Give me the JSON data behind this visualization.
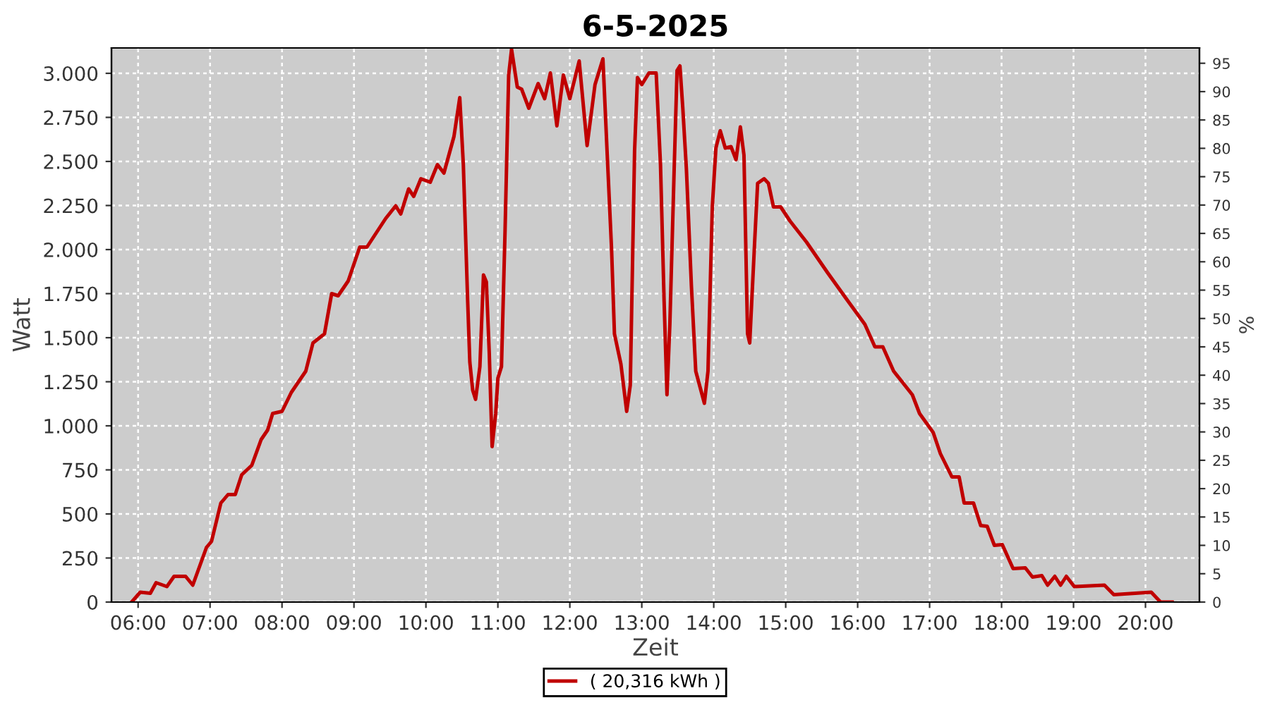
{
  "chart_data": {
    "type": "line",
    "title": "6-5-2025",
    "xlabel": "Zeit",
    "ylabel": "Watt",
    "y2label": "%",
    "xlim": [
      5.63,
      20.75
    ],
    "xticks": [
      {
        "value": 6,
        "label": "06:00"
      },
      {
        "value": 7,
        "label": "07:00"
      },
      {
        "value": 8,
        "label": "08:00"
      },
      {
        "value": 9,
        "label": "09:00"
      },
      {
        "value": 10,
        "label": "10:00"
      },
      {
        "value": 11,
        "label": "11:00"
      },
      {
        "value": 12,
        "label": "12:00"
      },
      {
        "value": 13,
        "label": "13:00"
      },
      {
        "value": 14,
        "label": "14:00"
      },
      {
        "value": 15,
        "label": "15:00"
      },
      {
        "value": 16,
        "label": "16:00"
      },
      {
        "value": 17,
        "label": "17:00"
      },
      {
        "value": 18,
        "label": "18:00"
      },
      {
        "value": 19,
        "label": "19:00"
      },
      {
        "value": 20,
        "label": "20:00"
      }
    ],
    "ylim": [
      0,
      3144
    ],
    "yticks": [
      0,
      250,
      500,
      750,
      {
        "value": 1000,
        "label": "1.000"
      },
      {
        "value": 1250,
        "label": "1.250"
      },
      {
        "value": 1500,
        "label": "1.500"
      },
      {
        "value": 1750,
        "label": "1.750"
      },
      {
        "value": 2000,
        "label": "2.000"
      },
      {
        "value": 2250,
        "label": "2.250"
      },
      {
        "value": 2500,
        "label": "2.500"
      },
      {
        "value": 2750,
        "label": "2.750"
      },
      {
        "value": 3000,
        "label": "3.000"
      }
    ],
    "y2lim": [
      0,
      97.7
    ],
    "y2ticks": [
      0,
      5,
      10,
      15,
      20,
      25,
      30,
      35,
      40,
      45,
      50,
      55,
      60,
      65,
      70,
      75,
      80,
      85,
      90,
      95
    ],
    "grid": true,
    "legend": "bottom",
    "marker": "none",
    "line_style": "solid",
    "series": [
      {
        "name": "( 20,316 kWh )",
        "color": "#c00000",
        "x": [
          5.91,
          6.03,
          6.17,
          6.25,
          6.4,
          6.5,
          6.66,
          6.76,
          6.95,
          7.02,
          7.15,
          7.25,
          7.35,
          7.44,
          7.58,
          7.71,
          7.8,
          7.87,
          8.0,
          8.13,
          8.33,
          8.43,
          8.59,
          8.69,
          8.78,
          8.92,
          9.08,
          9.18,
          9.44,
          9.58,
          9.65,
          9.76,
          9.83,
          9.93,
          10.06,
          10.16,
          10.25,
          10.39,
          10.47,
          10.52,
          10.58,
          10.61,
          10.65,
          10.69,
          10.75,
          10.8,
          10.84,
          10.88,
          10.92,
          10.97,
          11.0,
          11.05,
          11.1,
          11.15,
          11.19,
          11.27,
          11.33,
          11.43,
          11.56,
          11.65,
          11.73,
          11.82,
          11.91,
          12.0,
          12.13,
          12.24,
          12.35,
          12.46,
          12.52,
          12.58,
          12.62,
          12.71,
          12.79,
          12.84,
          12.9,
          12.94,
          13.0,
          13.1,
          13.2,
          13.26,
          13.31,
          13.35,
          13.39,
          13.45,
          13.49,
          13.53,
          13.57,
          13.62,
          13.69,
          13.75,
          13.87,
          13.92,
          13.98,
          14.03,
          14.09,
          14.16,
          14.24,
          14.31,
          14.37,
          14.42,
          14.47,
          14.5,
          14.57,
          14.61,
          14.7,
          14.76,
          14.83,
          14.93,
          15.06,
          15.29,
          15.58,
          15.84,
          16.1,
          16.24,
          16.35,
          16.5,
          16.76,
          16.86,
          17.05,
          17.15,
          17.31,
          17.41,
          17.48,
          17.61,
          17.71,
          17.8,
          17.9,
          18.01,
          18.16,
          18.33,
          18.43,
          18.56,
          18.64,
          18.74,
          18.82,
          18.9,
          19.01,
          19.43,
          19.56,
          20.08,
          20.21,
          20.37
        ],
        "values": [
          0,
          56,
          50,
          110,
          88,
          146,
          146,
          96,
          310,
          344,
          562,
          610,
          610,
          722,
          776,
          922,
          976,
          1070,
          1082,
          1190,
          1310,
          1470,
          1522,
          1750,
          1738,
          1822,
          2014,
          2014,
          2176,
          2248,
          2202,
          2344,
          2302,
          2402,
          2382,
          2482,
          2434,
          2642,
          2862,
          2482,
          1710,
          1362,
          1202,
          1150,
          1336,
          1856,
          1816,
          1416,
          882,
          1070,
          1270,
          1336,
          2110,
          2990,
          3136,
          2922,
          2910,
          2802,
          2942,
          2856,
          3002,
          2702,
          2990,
          2856,
          3070,
          2590,
          2936,
          3082,
          2536,
          2002,
          1522,
          1350,
          1082,
          1230,
          2562,
          2976,
          2936,
          3002,
          3002,
          2482,
          1710,
          1176,
          1576,
          2456,
          3016,
          3042,
          2802,
          2456,
          1790,
          1310,
          1128,
          1310,
          2242,
          2576,
          2674,
          2576,
          2584,
          2510,
          2696,
          2536,
          1522,
          1470,
          2056,
          2376,
          2402,
          2376,
          2242,
          2242,
          2162,
          2042,
          1870,
          1722,
          1576,
          1448,
          1448,
          1310,
          1176,
          1070,
          962,
          842,
          710,
          710,
          562,
          562,
          434,
          430,
          322,
          326,
          190,
          194,
          142,
          150,
          96,
          146,
          96,
          146,
          88,
          96,
          42,
          56,
          0,
          0
        ]
      }
    ]
  }
}
